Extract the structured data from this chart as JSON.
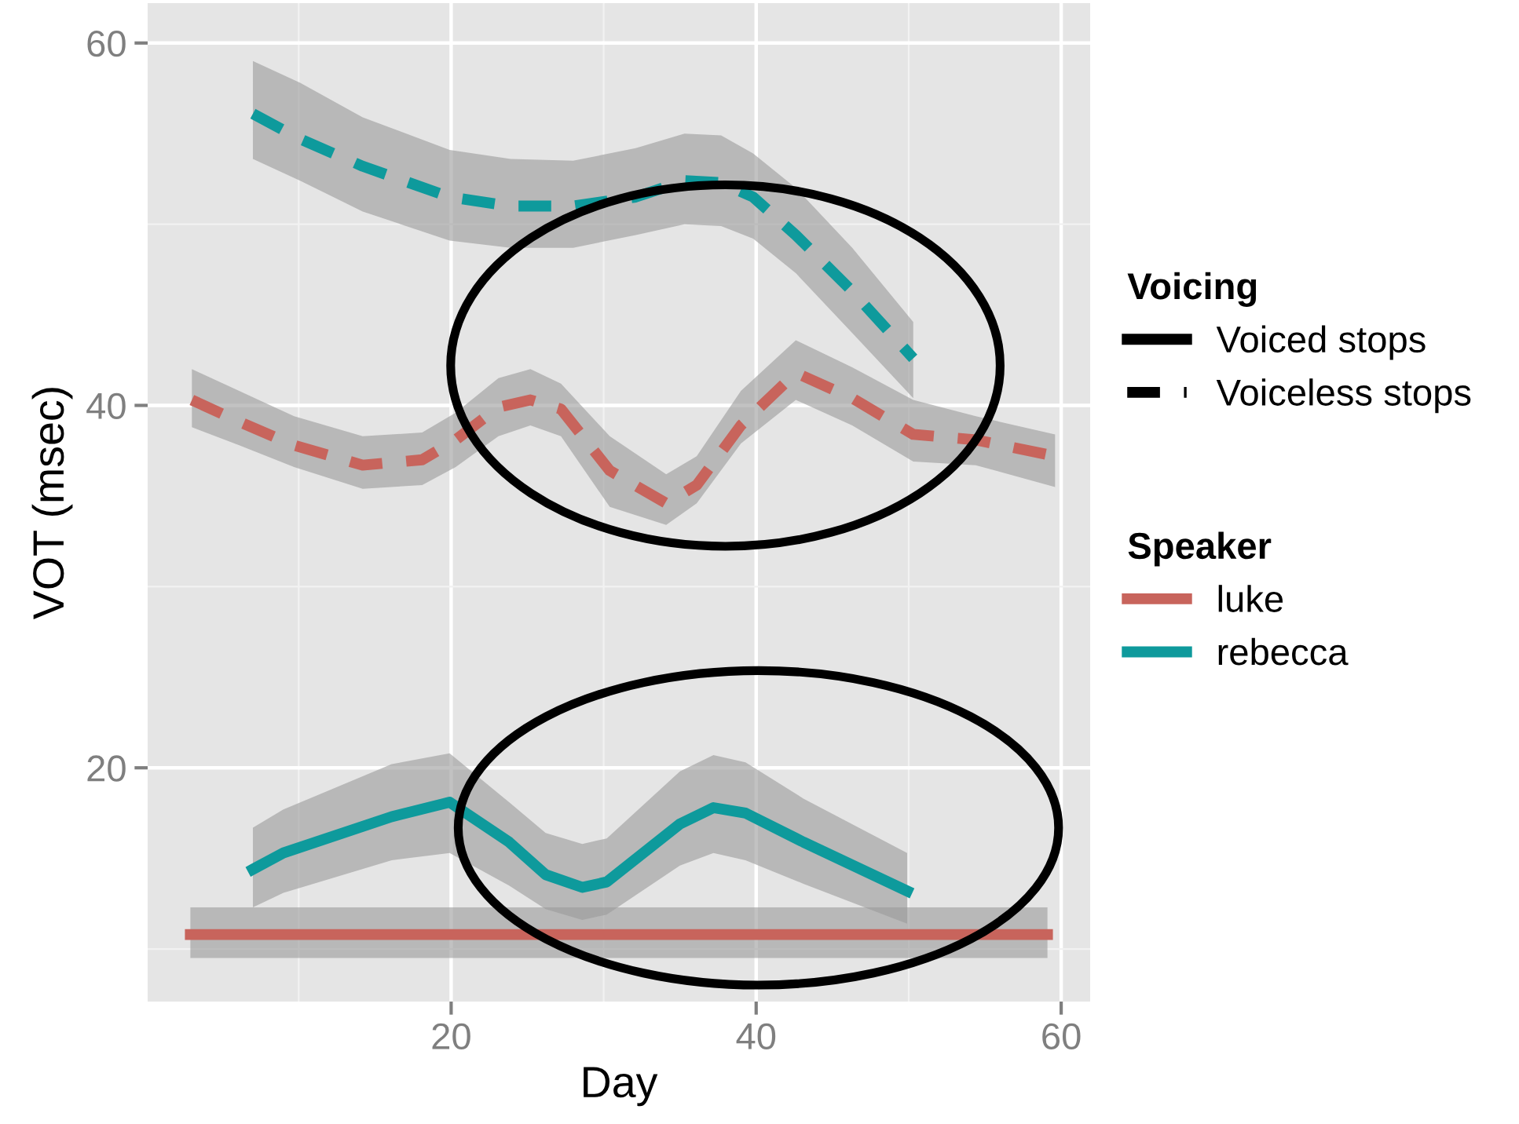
{
  "chart_data": {
    "type": "line",
    "xlabel": "Day",
    "ylabel": "VOT (msec)",
    "legend_title": "Speaker",
    "annotations": [
      "Voicing",
      "Voiced stops",
      "Voiceless stops"
    ],
    "xlim": [
      0.1,
      61.9
    ],
    "xticks": [
      20,
      40,
      60
    ],
    "ylim": [
      7.1,
      62.2
    ],
    "yticks": [
      20,
      40,
      60
    ],
    "grid": true,
    "legend": "right",
    "marker": "none",
    "series": [
      {
        "name": "luke",
        "color": "#c8645c",
        "line_style": "solid",
        "x": [
          2.9,
          59.1
        ],
        "values": [
          10.8,
          10.8
        ],
        "lower": [
          9.5,
          9.5
        ],
        "upper": [
          12.3,
          12.3
        ]
      },
      {
        "name": "rebecca",
        "color": "#0e9a9c",
        "line_style": "solid",
        "x": [
          7.0,
          9.0,
          16.1,
          19.9,
          23.8,
          26.2,
          28.6,
          30.2,
          35.0,
          37.2,
          39.3,
          43.1,
          49.9
        ],
        "values": [
          14.4,
          15.3,
          17.3,
          18.1,
          15.9,
          14.1,
          13.4,
          13.7,
          16.9,
          17.8,
          17.5,
          15.9,
          13.2
        ],
        "lower": [
          12.3,
          13.1,
          14.9,
          15.3,
          13.5,
          12.2,
          11.6,
          11.9,
          14.6,
          15.3,
          14.9,
          13.6,
          11.4
        ],
        "upper": [
          16.7,
          17.7,
          20.2,
          20.8,
          18.1,
          16.4,
          15.8,
          16.1,
          19.8,
          20.7,
          20.3,
          18.3,
          15.3
        ]
      },
      {
        "color": "#c8645c",
        "line_style": "dashed",
        "x": [
          3.0,
          6.1,
          9.7,
          14.2,
          18.1,
          20.3,
          23.1,
          25.2,
          27.2,
          30.4,
          34.1,
          36.1,
          39.0,
          42.6,
          46.3,
          50.3,
          54.4,
          59.6
        ],
        "values": [
          40.3,
          39.1,
          37.8,
          36.7,
          37.0,
          38.1,
          39.9,
          40.3,
          39.8,
          36.4,
          34.6,
          35.6,
          38.9,
          41.8,
          40.4,
          38.4,
          38.1,
          37.2
        ],
        "lower": [
          38.8,
          37.8,
          36.6,
          35.4,
          35.6,
          36.6,
          38.3,
          38.9,
          38.3,
          34.4,
          33.4,
          34.6,
          37.9,
          40.3,
          38.9,
          36.9,
          36.7,
          35.5
        ],
        "upper": [
          42.0,
          40.8,
          39.4,
          38.3,
          38.5,
          39.6,
          41.5,
          42.0,
          41.2,
          38.3,
          36.2,
          37.2,
          40.8,
          43.6,
          42.1,
          40.3,
          39.4,
          38.4
        ]
      },
      {
        "color": "#0e9a9c",
        "line_style": "dashed",
        "x": [
          7.0,
          10.1,
          14.2,
          19.9,
          23.9,
          28.0,
          32.1,
          35.3,
          37.7,
          39.8,
          42.6,
          46.3,
          50.3
        ],
        "values": [
          56.1,
          54.7,
          53.2,
          51.5,
          51.0,
          51.0,
          51.5,
          52.4,
          52.3,
          51.5,
          49.4,
          46.3,
          42.6
        ],
        "lower": [
          53.6,
          52.4,
          50.7,
          49.1,
          48.7,
          48.7,
          49.4,
          50.0,
          49.9,
          49.2,
          47.3,
          44.0,
          40.4
        ],
        "upper": [
          59.0,
          57.8,
          55.9,
          54.1,
          53.6,
          53.5,
          54.2,
          55.0,
          54.9,
          53.9,
          52.0,
          48.7,
          44.6
        ]
      }
    ]
  }
}
